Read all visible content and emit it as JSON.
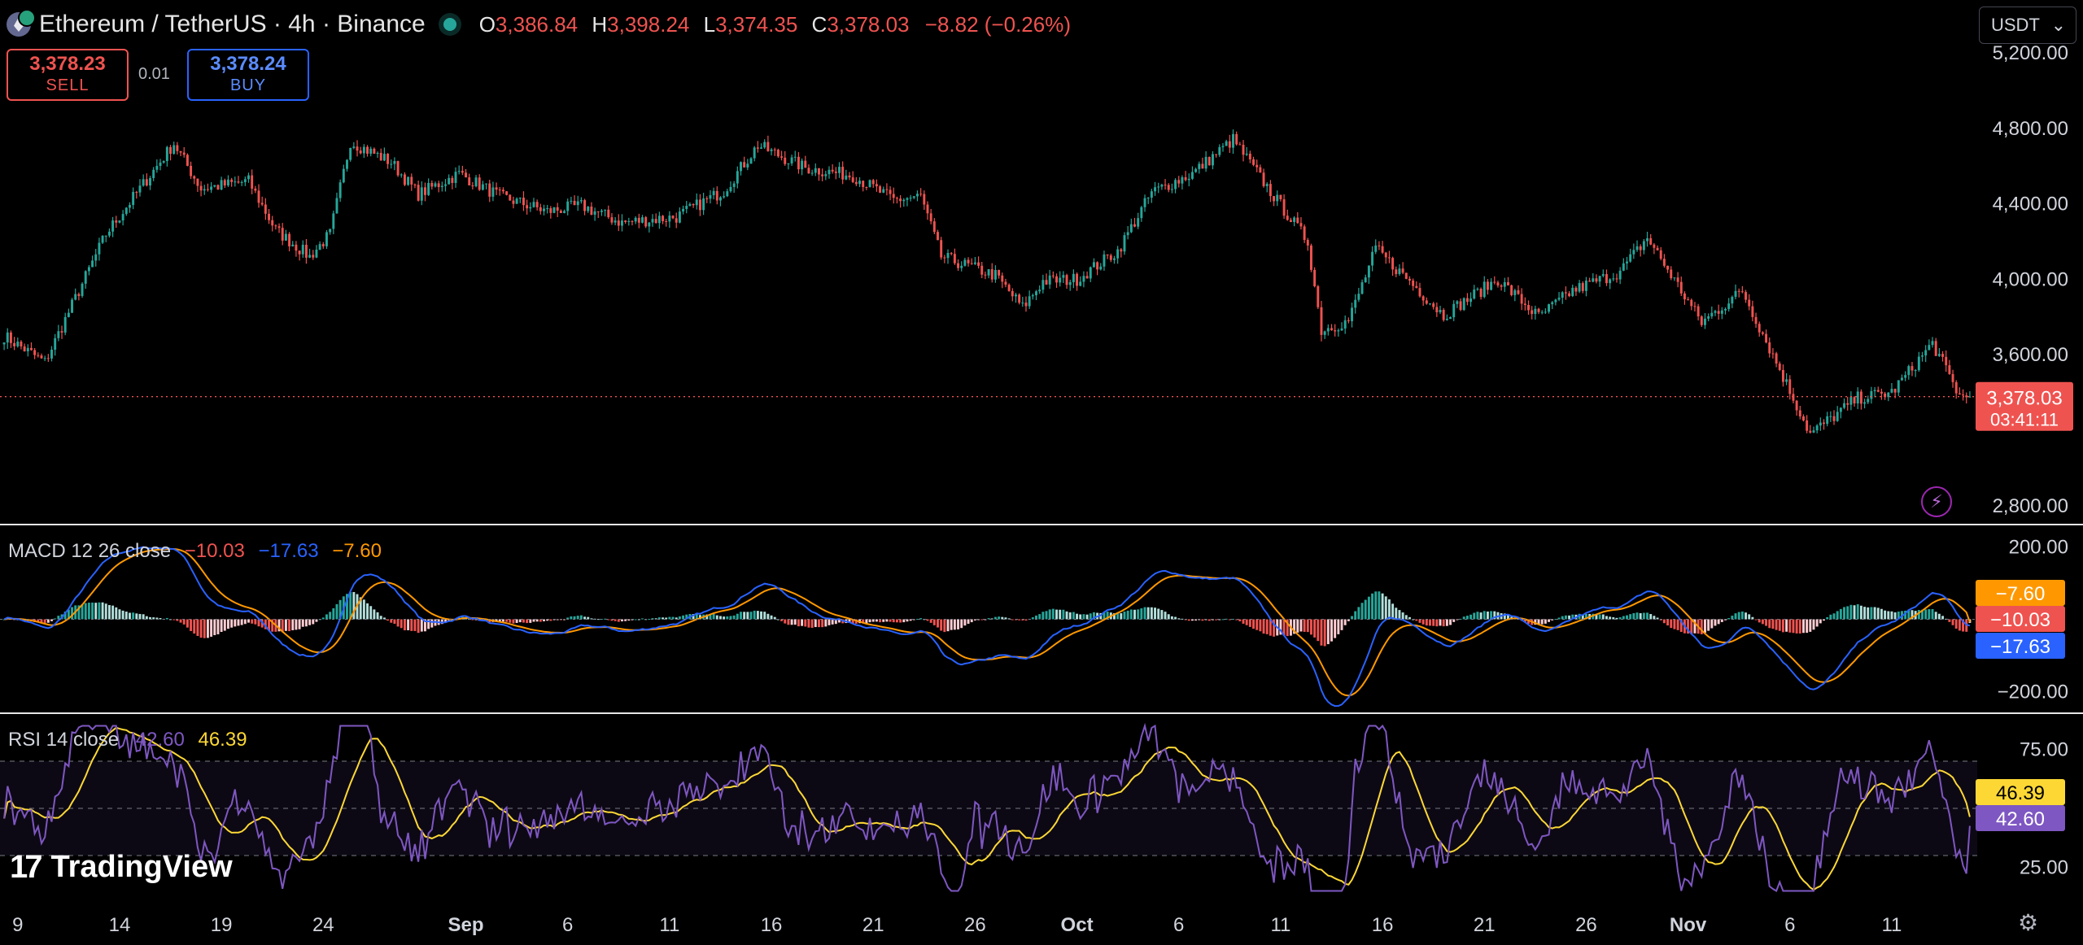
{
  "header": {
    "title": "Ethereum / TetherUS · 4h · Binance",
    "ohlc": [
      {
        "k": "O",
        "v": "3,386.84"
      },
      {
        "k": "H",
        "v": "3,398.24"
      },
      {
        "k": "L",
        "v": "3,374.35"
      },
      {
        "k": "C",
        "v": "3,378.03"
      }
    ],
    "change": "−8.82 (−0.26%)"
  },
  "trade": {
    "sell_price": "3,378.23",
    "sell_label": "SELL",
    "spread": "0.01",
    "buy_price": "3,378.24",
    "buy_label": "BUY"
  },
  "currency": "USDT",
  "brand": "TradingView",
  "colors": {
    "up": "#26a69a",
    "down": "#ef5350",
    "macd": "#2962ff",
    "signal": "#ff9800",
    "rsi": "#7e57c2",
    "rsi_ma": "#fdd835"
  },
  "chart_data": [
    {
      "type": "candlestick",
      "name": "Ethereum / TetherUS",
      "y_ticks": [
        "5,200.00",
        "4,800.00",
        "4,400.00",
        "4,000.00",
        "3,600.00",
        "2,800.00"
      ],
      "y_tick_values": [
        5200,
        4800,
        4400,
        4000,
        3600,
        2800
      ],
      "ylim": [
        2700,
        5480
      ],
      "last_price": "3,378.03",
      "countdown": "03:41:11",
      "last_price_value": 3378,
      "x_labels": [
        "9",
        "14",
        "19",
        "24",
        "Sep",
        "6",
        "11",
        "16",
        "21",
        "26",
        "Oct",
        "6",
        "11",
        "16",
        "21",
        "26",
        "Nov",
        "6",
        "11"
      ],
      "x_label_index": [
        4,
        34,
        64,
        94,
        136,
        166,
        196,
        226,
        256,
        286,
        316,
        346,
        376,
        406,
        436,
        466,
        496,
        526,
        556
      ],
      "candle_count": 580,
      "close_anchors": [
        [
          0,
          3700
        ],
        [
          12,
          3560
        ],
        [
          30,
          4240
        ],
        [
          50,
          4720
        ],
        [
          58,
          4480
        ],
        [
          72,
          4520
        ],
        [
          80,
          4260
        ],
        [
          90,
          4120
        ],
        [
          96,
          4240
        ],
        [
          102,
          4730
        ],
        [
          114,
          4620
        ],
        [
          122,
          4450
        ],
        [
          134,
          4560
        ],
        [
          146,
          4440
        ],
        [
          160,
          4360
        ],
        [
          170,
          4390
        ],
        [
          182,
          4300
        ],
        [
          198,
          4330
        ],
        [
          212,
          4470
        ],
        [
          222,
          4710
        ],
        [
          236,
          4590
        ],
        [
          250,
          4550
        ],
        [
          262,
          4420
        ],
        [
          270,
          4440
        ],
        [
          276,
          4120
        ],
        [
          292,
          4020
        ],
        [
          300,
          3850
        ],
        [
          306,
          3990
        ],
        [
          316,
          4000
        ],
        [
          328,
          4150
        ],
        [
          338,
          4460
        ],
        [
          350,
          4560
        ],
        [
          362,
          4740
        ],
        [
          374,
          4440
        ],
        [
          384,
          4200
        ],
        [
          388,
          3730
        ],
        [
          396,
          3780
        ],
        [
          404,
          4160
        ],
        [
          414,
          3990
        ],
        [
          424,
          3810
        ],
        [
          440,
          4000
        ],
        [
          452,
          3800
        ],
        [
          462,
          3940
        ],
        [
          476,
          4040
        ],
        [
          484,
          4220
        ],
        [
          500,
          3770
        ],
        [
          512,
          3940
        ],
        [
          522,
          3560
        ],
        [
          532,
          3180
        ],
        [
          546,
          3370
        ],
        [
          556,
          3400
        ],
        [
          568,
          3660
        ],
        [
          576,
          3380
        ],
        [
          580,
          3378
        ]
      ]
    },
    {
      "type": "macd",
      "label": "MACD 12 26 close",
      "values": {
        "histogram": "−10.03",
        "macd": "−17.63",
        "signal": "−7.60"
      },
      "y_ticks": [
        "200.00",
        "−200.00"
      ],
      "y_tick_values": [
        200,
        -200
      ],
      "ylim": [
        -260,
        260
      ]
    },
    {
      "type": "rsi",
      "label": "RSI 14 close",
      "values": {
        "rsi": "42.60",
        "rsi_ma": "46.39"
      },
      "y_ticks": [
        "75.00",
        "25.00"
      ],
      "y_tick_values": [
        75,
        25
      ],
      "ylim": [
        10,
        90
      ],
      "band": [
        30,
        70
      ]
    }
  ]
}
